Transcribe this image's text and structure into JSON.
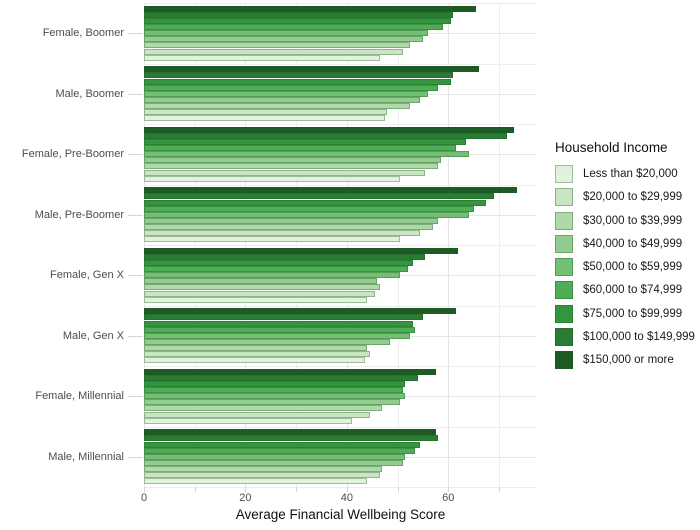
{
  "chart_data": {
    "type": "bar",
    "orientation": "horizontal",
    "xlabel": "Average Financial Wellbeing Score",
    "legend_title": "Household Income",
    "legend_position": "right",
    "grid": true,
    "xlim": [
      0,
      77.5
    ],
    "x_tick_labels": [
      "0",
      "20",
      "40",
      "60"
    ],
    "x_tick_values": [
      0,
      20,
      40,
      60
    ],
    "x_grid_values": [
      0,
      10,
      20,
      30,
      40,
      50,
      60,
      70
    ],
    "income_levels": [
      {
        "label": "Less than $20,000",
        "color": "#e2f2dd"
      },
      {
        "label": "$20,000 to $29,999",
        "color": "#c9e6c2"
      },
      {
        "label": "$30,000 to $39,999",
        "color": "#aedaa7"
      },
      {
        "label": "$40,000 to $49,999",
        "color": "#92cc8e"
      },
      {
        "label": "$50,000 to $59,999",
        "color": "#73bf74"
      },
      {
        "label": "$60,000 to $74,999",
        "color": "#4eae56"
      },
      {
        "label": "$75,000 to $99,999",
        "color": "#35953e"
      },
      {
        "label": "$100,000 to $149,999",
        "color": "#287d33"
      },
      {
        "label": "$150,000 or more",
        "color": "#1d5b25"
      }
    ],
    "groups": [
      {
        "label": "Female, Boomer",
        "values": [
          46.5,
          51,
          52.5,
          55,
          56,
          59,
          60.5,
          61,
          65.5
        ]
      },
      {
        "label": "Male, Boomer",
        "values": [
          47.5,
          48,
          52.5,
          54.5,
          56,
          58,
          60.5,
          61,
          66
        ]
      },
      {
        "label": "Female, Pre-Boomer",
        "values": [
          50.5,
          55.5,
          58,
          58.5,
          64,
          61.5,
          63.5,
          71.5,
          73
        ]
      },
      {
        "label": "Male, Pre-Boomer",
        "values": [
          50.5,
          54.5,
          57,
          58,
          64,
          65,
          67.5,
          69,
          73.5
        ]
      },
      {
        "label": "Female, Gen X",
        "values": [
          44,
          45.5,
          46.5,
          46,
          50.5,
          52,
          53,
          55.5,
          62
        ]
      },
      {
        "label": "Male, Gen X",
        "values": [
          43.5,
          44.5,
          44,
          48.5,
          52.5,
          53.5,
          53,
          55,
          61.5
        ]
      },
      {
        "label": "Female, Millennial",
        "values": [
          41,
          44.5,
          47,
          50.5,
          51.5,
          51,
          51.5,
          54,
          57.5
        ]
      },
      {
        "label": "Male, Millennial",
        "values": [
          44,
          46.5,
          47,
          51,
          51.5,
          53.5,
          54.5,
          58,
          57.5
        ]
      }
    ]
  }
}
